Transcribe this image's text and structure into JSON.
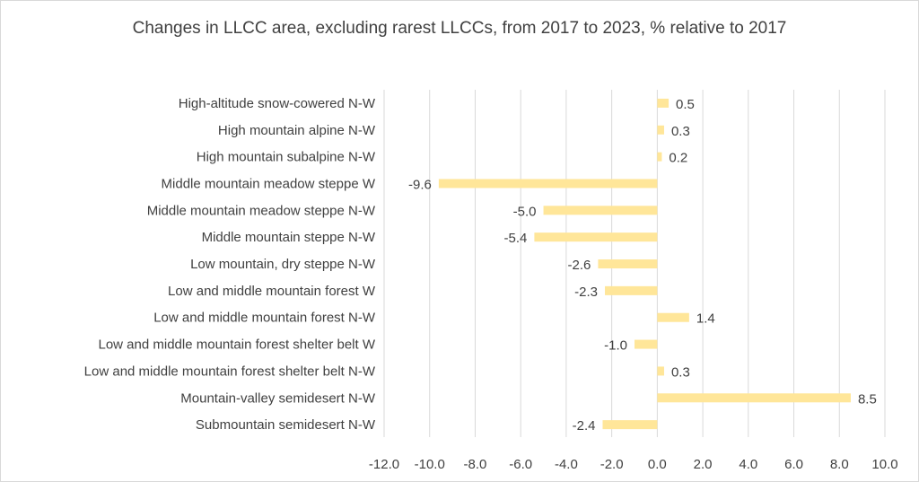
{
  "chart_data": {
    "type": "bar",
    "orientation": "horizontal",
    "title": "Changes in LLCC area, excluding rarest LLCCs, from 2017 to 2023, % relative to 2017",
    "categories": [
      "High-altitude snow-cowered N-W",
      "High mountain alpine N-W",
      "High mountain subalpine N-W",
      "Middle mountain meadow steppe W",
      "Middle mountain meadow steppe N-W",
      "Middle mountain steppe N-W",
      "Low mountain, dry steppe N-W",
      "Low and middle mountain forest W",
      "Low and middle mountain forest N-W",
      "Low and middle mountain forest shelter belt W",
      "Low and middle mountain forest shelter belt N-W",
      "Mountain-valley semidesert N-W",
      "Submountain semidesert N-W"
    ],
    "values": [
      0.5,
      0.3,
      0.2,
      -9.6,
      -5.0,
      -5.4,
      -2.6,
      -2.3,
      1.4,
      -1.0,
      0.3,
      8.5,
      -2.4
    ],
    "data_labels": [
      "0.5",
      "0.3",
      "0.2",
      "-9.6",
      "-5.0",
      "-5.4",
      "-2.6",
      "-2.3",
      "1.4",
      "-1.0",
      "0.3",
      "8.5",
      "-2.4"
    ],
    "xlim": [
      -12.0,
      10.0
    ],
    "x_ticks": [
      -12.0,
      -10.0,
      -8.0,
      -6.0,
      -4.0,
      -2.0,
      0.0,
      2.0,
      4.0,
      6.0,
      8.0,
      10.0
    ],
    "x_tick_labels": [
      "-12.0",
      "-10.0",
      "-8.0",
      "-6.0",
      "-4.0",
      "-2.0",
      "0.0",
      "2.0",
      "4.0",
      "6.0",
      "8.0",
      "10.0"
    ],
    "xlabel": "",
    "ylabel": "",
    "grid": "vertical",
    "legend": "none",
    "colors": {
      "bar": "#ffe699",
      "grid": "#d9d9d9",
      "text": "#404040"
    }
  }
}
